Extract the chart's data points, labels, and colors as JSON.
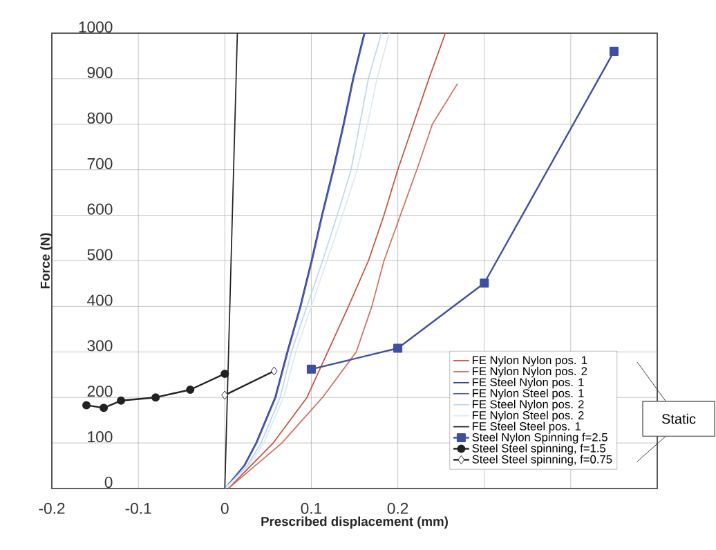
{
  "chart_data": {
    "type": "line",
    "xlabel": "Prescribed displacement (mm)",
    "ylabel": "Force (N)",
    "xlim": [
      -0.2,
      0.5
    ],
    "ylim": [
      0,
      1000
    ],
    "xticks": [
      -0.2,
      -0.1,
      0,
      0.1,
      0.2,
      {
        "value": 0.3,
        "label": null
      },
      {
        "value": 0.4,
        "label": null
      },
      {
        "value": 0.5,
        "label": null
      }
    ],
    "yticks": [
      0,
      100,
      200,
      300,
      400,
      500,
      600,
      700,
      800,
      900,
      1000
    ],
    "grid": true,
    "legend": "bottom right",
    "marker": "none",
    "line_style": "solid",
    "annotations": [
      "Static"
    ],
    "series": [
      {
        "name": "FE Nylon Nylon pos. 1",
        "color": "#c8503c",
        "x": [
          0.004,
          0.03,
          0.056,
          0.095,
          0.119,
          0.143,
          0.166,
          0.184,
          0.2,
          0.218,
          0.236,
          0.255
        ],
        "values": [
          0,
          50,
          100,
          200,
          300,
          400,
          500,
          600,
          700,
          800,
          900,
          1000
        ]
      },
      {
        "name": "FE Nylon Nylon pos. 2",
        "color": "#d07060",
        "x": [
          0.004,
          0.035,
          0.066,
          0.113,
          0.152,
          0.17,
          0.184,
          0.203,
          0.222,
          0.24,
          0.269
        ],
        "values": [
          0,
          50,
          100,
          200,
          300,
          400,
          500,
          600,
          700,
          800,
          889
        ]
      },
      {
        "name": "FE Steel Nylon pos. 1",
        "color": "#2e3f96",
        "x": [
          0,
          0.022,
          0.036,
          0.058,
          0.072,
          0.087,
          0.1,
          0.112,
          0.125,
          0.137,
          0.148,
          0.161
        ],
        "values": [
          0,
          50,
          100,
          200,
          300,
          400,
          500,
          600,
          700,
          800,
          900,
          1000
        ]
      },
      {
        "name": "FE Nylon Steel pos. 1",
        "color": "#5060b0",
        "x": [
          0,
          0.023,
          0.037,
          0.059,
          0.073,
          0.088,
          0.101,
          0.113,
          0.126,
          0.138,
          0.149,
          0.162
        ],
        "values": [
          0,
          50,
          100,
          200,
          300,
          400,
          500,
          600,
          700,
          800,
          900,
          1000
        ]
      },
      {
        "name": "FE Steel Nylon pos. 2",
        "color": "#bcd8ee",
        "x": [
          0,
          0.026,
          0.042,
          0.064,
          0.077,
          0.095,
          0.113,
          0.13,
          0.146,
          0.156,
          0.166,
          0.181
        ],
        "values": [
          0,
          50,
          100,
          200,
          300,
          400,
          500,
          600,
          700,
          800,
          900,
          1000
        ]
      },
      {
        "name": "FE Nylon Steel pos. 2",
        "color": "#dbe9f5",
        "x": [
          0,
          0.028,
          0.045,
          0.068,
          0.082,
          0.1,
          0.118,
          0.136,
          0.153,
          0.165,
          0.176,
          0.19
        ],
        "values": [
          0,
          50,
          100,
          200,
          300,
          400,
          500,
          600,
          700,
          800,
          900,
          1000
        ]
      },
      {
        "name": "FE Steel Steel pos. 1",
        "color": "#222222",
        "x": [
          0,
          0.0145
        ],
        "values": [
          0,
          1000
        ]
      },
      {
        "name": "Steel Nylon Spinning f=2.5",
        "color": "#3f4fa0",
        "marker": "square",
        "x": [
          0.1,
          0.2,
          0.3,
          0.45
        ],
        "values": [
          262,
          308,
          451,
          960
        ]
      },
      {
        "name": "Steel Steel spinning, f=1.5",
        "color": "#222222",
        "marker": "circle",
        "x": [
          -0.16,
          -0.14,
          -0.12,
          -0.08,
          -0.04,
          0
        ],
        "values": [
          183,
          177,
          193,
          200,
          217,
          252
        ]
      },
      {
        "name": "Steel Steel spinning, f=0.75",
        "color": "#222222",
        "marker": "diamond",
        "x": [
          0,
          0.057
        ],
        "values": [
          205,
          258
        ]
      }
    ]
  }
}
